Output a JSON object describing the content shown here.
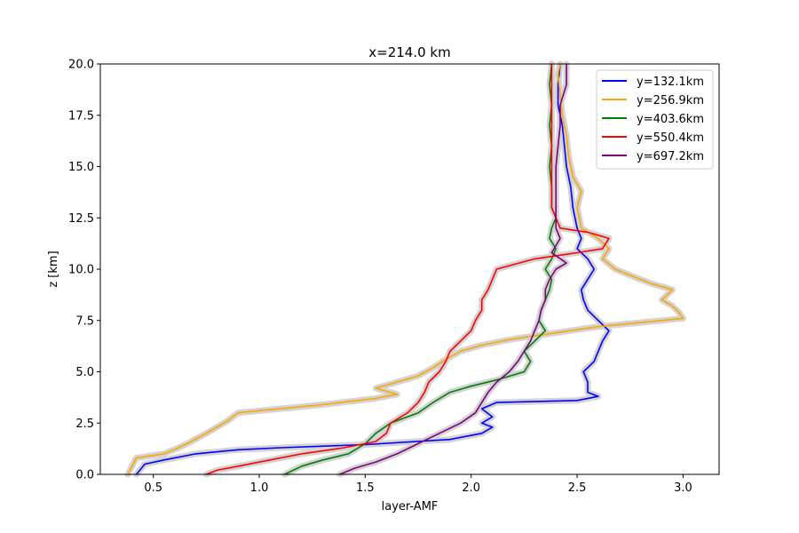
{
  "chart_data": {
    "type": "line",
    "title": "x=214.0 km",
    "xlabel": "layer-AMF",
    "ylabel": "z [km]",
    "xlim": [
      0.25,
      3.17
    ],
    "ylim": [
      0,
      20
    ],
    "xticks": [
      0.5,
      1.0,
      1.5,
      2.0,
      2.5,
      3.0
    ],
    "xtick_labels": [
      "0.5",
      "1.0",
      "1.5",
      "2.0",
      "2.5",
      "3.0"
    ],
    "yticks": [
      0,
      2.5,
      5,
      7.5,
      10,
      12.5,
      15,
      17.5,
      20
    ],
    "ytick_labels": [
      "0.0",
      "2.5",
      "5.0",
      "7.5",
      "10.0",
      "12.5",
      "15.0",
      "17.5",
      "20.0"
    ],
    "grid": false,
    "legend_position": "top-right",
    "band_color": "#d3d3d3",
    "series": [
      {
        "name": "y=132.1km",
        "color": "#0000ff",
        "points": [
          [
            0.42,
            0
          ],
          [
            0.44,
            0.25
          ],
          [
            0.46,
            0.5
          ],
          [
            0.55,
            0.7
          ],
          [
            0.7,
            1.0
          ],
          [
            0.9,
            1.2
          ],
          [
            1.1,
            1.3
          ],
          [
            1.5,
            1.45
          ],
          [
            1.9,
            1.7
          ],
          [
            2.05,
            2.0
          ],
          [
            2.1,
            2.3
          ],
          [
            2.05,
            2.5
          ],
          [
            2.1,
            2.8
          ],
          [
            2.05,
            3.2
          ],
          [
            2.12,
            3.5
          ],
          [
            2.5,
            3.6
          ],
          [
            2.6,
            3.8
          ],
          [
            2.55,
            4.0
          ],
          [
            2.55,
            4.5
          ],
          [
            2.53,
            5.0
          ],
          [
            2.58,
            5.5
          ],
          [
            2.6,
            6.0
          ],
          [
            2.62,
            6.5
          ],
          [
            2.65,
            7.0
          ],
          [
            2.6,
            7.5
          ],
          [
            2.55,
            8.0
          ],
          [
            2.53,
            8.5
          ],
          [
            2.52,
            9.0
          ],
          [
            2.55,
            9.5
          ],
          [
            2.58,
            10.0
          ],
          [
            2.55,
            10.5
          ],
          [
            2.5,
            11.0
          ],
          [
            2.52,
            11.5
          ],
          [
            2.5,
            12.0
          ],
          [
            2.48,
            13.0
          ],
          [
            2.47,
            14.0
          ],
          [
            2.45,
            15.0
          ],
          [
            2.44,
            16.0
          ],
          [
            2.43,
            17.0
          ],
          [
            2.41,
            18.0
          ],
          [
            2.41,
            19.0
          ],
          [
            2.42,
            20.0
          ]
        ]
      },
      {
        "name": "y=256.9km",
        "color": "#ffa500",
        "points": [
          [
            0.38,
            0
          ],
          [
            0.4,
            0.4
          ],
          [
            0.42,
            0.8
          ],
          [
            0.55,
            1.0
          ],
          [
            0.62,
            1.3
          ],
          [
            0.68,
            1.6
          ],
          [
            0.75,
            2.0
          ],
          [
            0.8,
            2.3
          ],
          [
            0.85,
            2.6
          ],
          [
            0.9,
            3.0
          ],
          [
            1.1,
            3.2
          ],
          [
            1.3,
            3.4
          ],
          [
            1.55,
            3.7
          ],
          [
            1.65,
            3.9
          ],
          [
            1.55,
            4.2
          ],
          [
            1.65,
            4.5
          ],
          [
            1.75,
            4.8
          ],
          [
            1.82,
            5.2
          ],
          [
            1.88,
            5.6
          ],
          [
            1.95,
            6.0
          ],
          [
            2.05,
            6.3
          ],
          [
            2.2,
            6.6
          ],
          [
            2.4,
            6.9
          ],
          [
            2.6,
            7.2
          ],
          [
            2.8,
            7.4
          ],
          [
            3.0,
            7.6
          ],
          [
            2.98,
            7.9
          ],
          [
            2.95,
            8.2
          ],
          [
            2.9,
            8.5
          ],
          [
            2.95,
            9.0
          ],
          [
            2.85,
            9.3
          ],
          [
            2.75,
            9.7
          ],
          [
            2.68,
            10.0
          ],
          [
            2.62,
            10.5
          ],
          [
            2.65,
            11.0
          ],
          [
            2.6,
            11.5
          ],
          [
            2.52,
            12.0
          ],
          [
            2.5,
            13.0
          ],
          [
            2.52,
            13.8
          ],
          [
            2.48,
            14.5
          ],
          [
            2.46,
            15.5
          ],
          [
            2.45,
            16.5
          ],
          [
            2.43,
            17.5
          ],
          [
            2.42,
            18.5
          ],
          [
            2.41,
            19.5
          ],
          [
            2.42,
            20.0
          ]
        ]
      },
      {
        "name": "y=403.6km",
        "color": "#008000",
        "points": [
          [
            1.12,
            0
          ],
          [
            1.2,
            0.4
          ],
          [
            1.3,
            0.7
          ],
          [
            1.42,
            1.0
          ],
          [
            1.5,
            1.5
          ],
          [
            1.55,
            2.0
          ],
          [
            1.62,
            2.5
          ],
          [
            1.75,
            3.0
          ],
          [
            1.82,
            3.5
          ],
          [
            1.9,
            4.0
          ],
          [
            2.0,
            4.3
          ],
          [
            2.12,
            4.6
          ],
          [
            2.25,
            5.0
          ],
          [
            2.28,
            5.5
          ],
          [
            2.25,
            6.0
          ],
          [
            2.3,
            6.5
          ],
          [
            2.35,
            7.0
          ],
          [
            2.32,
            7.5
          ],
          [
            2.33,
            8.0
          ],
          [
            2.35,
            8.5
          ],
          [
            2.37,
            9.0
          ],
          [
            2.38,
            9.5
          ],
          [
            2.35,
            10.0
          ],
          [
            2.38,
            10.5
          ],
          [
            2.4,
            11.0
          ],
          [
            2.37,
            11.5
          ],
          [
            2.38,
            12.0
          ],
          [
            2.4,
            12.5
          ],
          [
            2.38,
            13.0
          ],
          [
            2.38,
            14.0
          ],
          [
            2.37,
            15.0
          ],
          [
            2.38,
            16.0
          ],
          [
            2.37,
            17.0
          ],
          [
            2.38,
            18.0
          ],
          [
            2.37,
            19.0
          ],
          [
            2.38,
            20.0
          ]
        ]
      },
      {
        "name": "y=550.4km",
        "color": "#ff0000",
        "points": [
          [
            0.75,
            0
          ],
          [
            0.8,
            0.2
          ],
          [
            0.9,
            0.4
          ],
          [
            1.05,
            0.7
          ],
          [
            1.2,
            1.0
          ],
          [
            1.4,
            1.3
          ],
          [
            1.55,
            1.6
          ],
          [
            1.6,
            2.0
          ],
          [
            1.62,
            2.5
          ],
          [
            1.7,
            3.0
          ],
          [
            1.75,
            3.5
          ],
          [
            1.78,
            4.0
          ],
          [
            1.8,
            4.5
          ],
          [
            1.85,
            5.0
          ],
          [
            1.88,
            5.5
          ],
          [
            1.9,
            6.0
          ],
          [
            1.95,
            6.5
          ],
          [
            2.0,
            7.0
          ],
          [
            2.02,
            7.5
          ],
          [
            2.05,
            8.0
          ],
          [
            2.05,
            8.5
          ],
          [
            2.08,
            9.0
          ],
          [
            2.1,
            9.5
          ],
          [
            2.12,
            10.0
          ],
          [
            2.3,
            10.5
          ],
          [
            2.5,
            10.8
          ],
          [
            2.62,
            11.0
          ],
          [
            2.65,
            11.5
          ],
          [
            2.55,
            11.8
          ],
          [
            2.42,
            12.0
          ],
          [
            2.38,
            13.0
          ],
          [
            2.38,
            14.0
          ],
          [
            2.38,
            15.0
          ],
          [
            2.38,
            16.0
          ],
          [
            2.38,
            17.0
          ],
          [
            2.38,
            18.0
          ],
          [
            2.38,
            19.0
          ],
          [
            2.38,
            20.0
          ]
        ]
      },
      {
        "name": "y=697.2km",
        "color": "#800080",
        "points": [
          [
            1.38,
            0
          ],
          [
            1.45,
            0.3
          ],
          [
            1.55,
            0.6
          ],
          [
            1.65,
            1.0
          ],
          [
            1.75,
            1.5
          ],
          [
            1.85,
            2.0
          ],
          [
            1.95,
            2.5
          ],
          [
            2.02,
            3.0
          ],
          [
            2.05,
            3.5
          ],
          [
            2.08,
            4.0
          ],
          [
            2.12,
            4.5
          ],
          [
            2.18,
            5.0
          ],
          [
            2.22,
            5.5
          ],
          [
            2.25,
            6.0
          ],
          [
            2.28,
            6.5
          ],
          [
            2.3,
            7.0
          ],
          [
            2.32,
            7.5
          ],
          [
            2.33,
            8.0
          ],
          [
            2.35,
            8.5
          ],
          [
            2.35,
            9.0
          ],
          [
            2.37,
            9.5
          ],
          [
            2.4,
            10.0
          ],
          [
            2.45,
            10.3
          ],
          [
            2.38,
            10.8
          ],
          [
            2.42,
            11.5
          ],
          [
            2.4,
            12.0
          ],
          [
            2.4,
            13.0
          ],
          [
            2.4,
            14.0
          ],
          [
            2.4,
            15.0
          ],
          [
            2.41,
            16.0
          ],
          [
            2.42,
            17.0
          ],
          [
            2.42,
            18.0
          ],
          [
            2.45,
            19.0
          ],
          [
            2.45,
            20.0
          ]
        ]
      }
    ]
  }
}
